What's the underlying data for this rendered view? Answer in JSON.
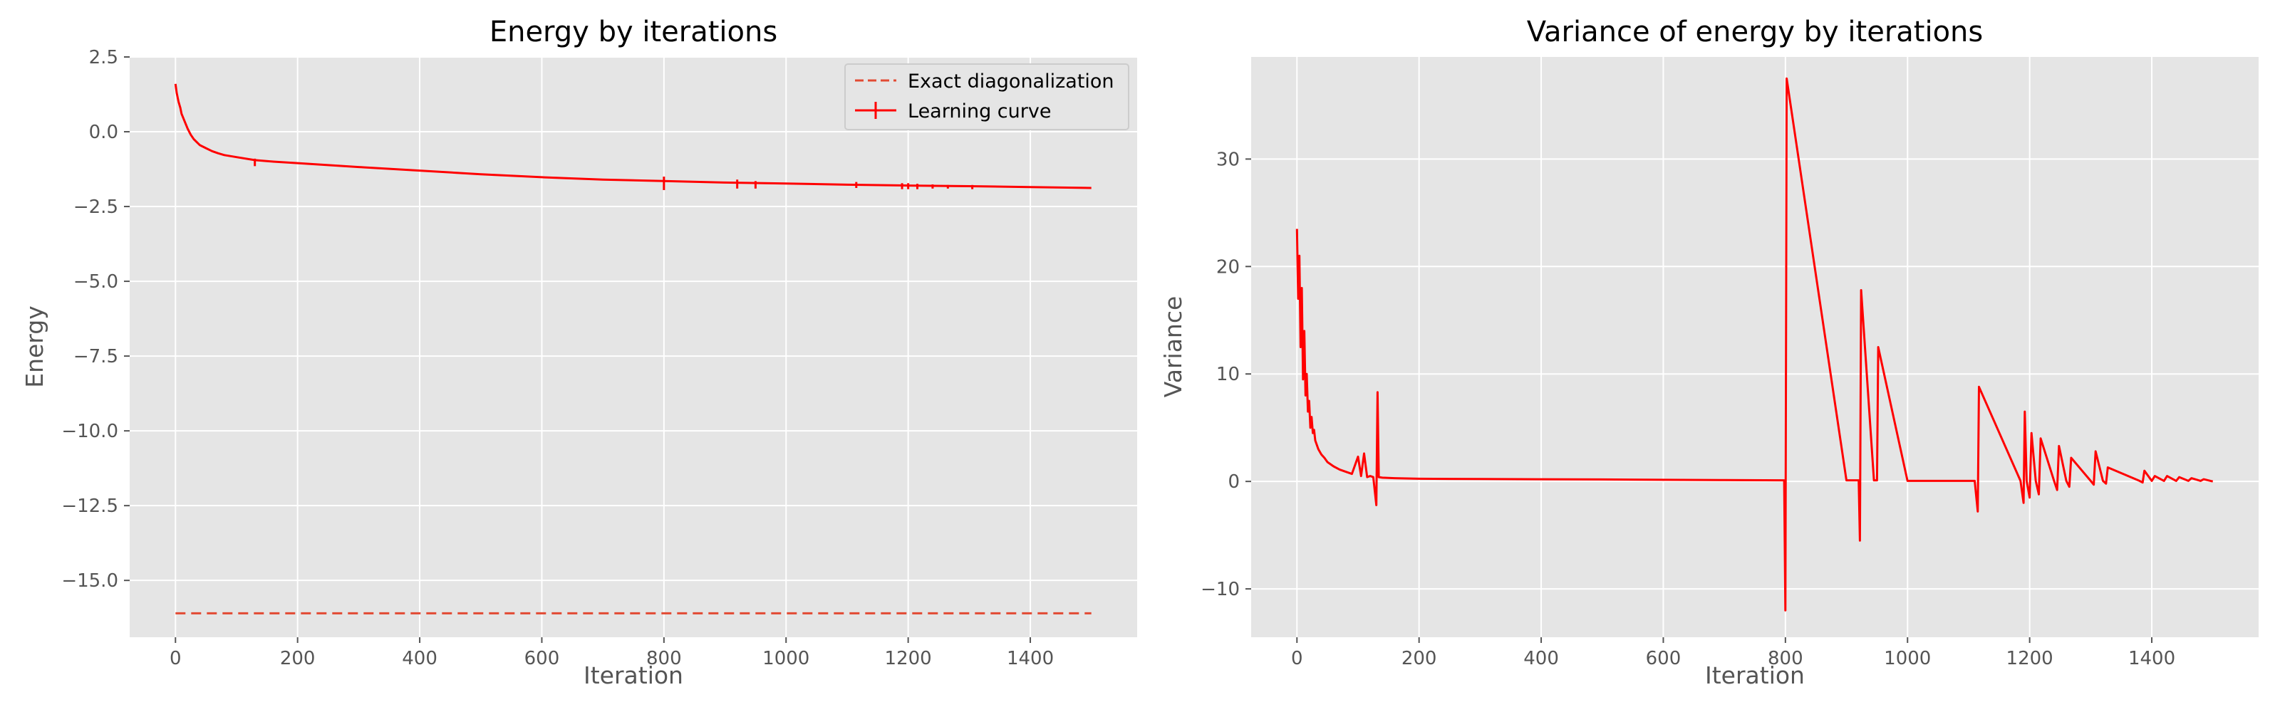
{
  "chart_data": [
    {
      "type": "line",
      "title": "Energy by iterations",
      "xlabel": "Iteration",
      "ylabel": "Energy",
      "xlim": [
        -75,
        1575
      ],
      "ylim": [
        -16.9,
        2.5
      ],
      "xticks": [
        0,
        200,
        400,
        600,
        800,
        1000,
        1200,
        1400
      ],
      "xtick_labels": [
        "0",
        "200",
        "400",
        "600",
        "800",
        "1000",
        "1200",
        "1400"
      ],
      "yticks": [
        2.5,
        0.0,
        -2.5,
        -5.0,
        -7.5,
        -10.0,
        -12.5,
        -15.0
      ],
      "ytick_labels": [
        "2.5",
        "0.0",
        "−2.5",
        "−5.0",
        "−7.5",
        "−10.0",
        "−12.5",
        "−15.0"
      ],
      "grid": true,
      "legend": "top-right",
      "colors": {
        "series": "#ff0000",
        "exact": "#e24a33"
      },
      "series": [
        {
          "name": "Exact diagonalization",
          "style": "dashed",
          "x": [
            0,
            1500
          ],
          "y": [
            -16.1,
            -16.1
          ]
        },
        {
          "name": "Learning curve",
          "style": "solid-errorbar",
          "x": [
            0,
            2,
            5,
            8,
            10,
            15,
            20,
            25,
            30,
            40,
            50,
            60,
            70,
            80,
            100,
            130,
            160,
            200,
            300,
            400,
            500,
            600,
            700,
            800,
            900,
            1000,
            1100,
            1200,
            1300,
            1400,
            1500
          ],
          "y": [
            1.6,
            1.3,
            1.0,
            0.8,
            0.6,
            0.35,
            0.1,
            -0.1,
            -0.25,
            -0.45,
            -0.55,
            -0.65,
            -0.72,
            -0.78,
            -0.85,
            -0.95,
            -1.0,
            -1.05,
            -1.18,
            -1.3,
            -1.42,
            -1.52,
            -1.6,
            -1.65,
            -1.7,
            -1.73,
            -1.77,
            -1.8,
            -1.82,
            -1.85,
            -1.88
          ]
        }
      ],
      "error_spikes": [
        {
          "x": 130,
          "lo": -1.15,
          "hi": -0.9
        },
        {
          "x": 800,
          "lo": -1.95,
          "hi": -1.5
        },
        {
          "x": 920,
          "lo": -1.9,
          "hi": -1.6
        },
        {
          "x": 950,
          "lo": -1.9,
          "hi": -1.65
        },
        {
          "x": 1115,
          "lo": -1.88,
          "hi": -1.68
        },
        {
          "x": 1190,
          "lo": -1.92,
          "hi": -1.72
        },
        {
          "x": 1200,
          "lo": -1.92,
          "hi": -1.72
        },
        {
          "x": 1215,
          "lo": -1.92,
          "hi": -1.74
        },
        {
          "x": 1240,
          "lo": -1.9,
          "hi": -1.76
        },
        {
          "x": 1265,
          "lo": -1.9,
          "hi": -1.78
        },
        {
          "x": 1305,
          "lo": -1.92,
          "hi": -1.78
        }
      ]
    },
    {
      "type": "line",
      "title": "Variance of energy by iterations",
      "xlabel": "Iteration",
      "ylabel": "Variance",
      "xlim": [
        -75,
        1575
      ],
      "ylim": [
        -14.5,
        39.5
      ],
      "xticks": [
        0,
        200,
        400,
        600,
        800,
        1000,
        1200,
        1400
      ],
      "xtick_labels": [
        "0",
        "200",
        "400",
        "600",
        "800",
        "1000",
        "1200",
        "1400"
      ],
      "yticks": [
        30,
        20,
        10,
        0,
        -10
      ],
      "ytick_labels": [
        "30",
        "20",
        "10",
        "0",
        "−10"
      ],
      "grid": true,
      "colors": {
        "series": "#ff0000"
      },
      "series": [
        {
          "style": "solid",
          "x": [
            0,
            2,
            4,
            6,
            8,
            10,
            12,
            14,
            16,
            18,
            20,
            22,
            24,
            26,
            28,
            30,
            35,
            40,
            45,
            50,
            60,
            70,
            80,
            90,
            100,
            105,
            110,
            115,
            120,
            125,
            130,
            132,
            134,
            140,
            160,
            200,
            300,
            400,
            500,
            600,
            700,
            798,
            800,
            802,
            900,
            920,
            922,
            924,
            945,
            950,
            952,
            1000,
            1110,
            1115,
            1117,
            1185,
            1190,
            1192,
            1195,
            1200,
            1203,
            1210,
            1215,
            1218,
            1240,
            1245,
            1248,
            1260,
            1265,
            1268,
            1300,
            1305,
            1308,
            1320,
            1325,
            1328,
            1380,
            1385,
            1388,
            1400,
            1405,
            1420,
            1425,
            1440,
            1445,
            1460,
            1465,
            1480,
            1485,
            1500
          ],
          "y": [
            23.5,
            17,
            21,
            12.5,
            18,
            9.5,
            14,
            8,
            10,
            6.5,
            7.5,
            5,
            6,
            4.5,
            4.8,
            3.8,
            3,
            2.5,
            2.2,
            1.8,
            1.4,
            1.1,
            0.9,
            0.7,
            2.3,
            0.5,
            2.6,
            0.4,
            0.5,
            0.4,
            -2.2,
            8.3,
            0.4,
            0.35,
            0.3,
            0.25,
            0.22,
            0.2,
            0.18,
            0.15,
            0.12,
            0.1,
            -12,
            37.5,
            0.1,
            0.1,
            -5.5,
            17.8,
            0.1,
            0.1,
            12.5,
            0.05,
            0.05,
            -2.8,
            8.8,
            0.05,
            -2,
            6.5,
            0.05,
            -1.5,
            4.5,
            0.05,
            -1.2,
            4,
            0.05,
            -0.8,
            3.3,
            0.05,
            -0.5,
            2.2,
            0.05,
            -0.3,
            2.8,
            0.05,
            -0.2,
            1.3,
            0.05,
            -0.1,
            1.0,
            0.05,
            0.5,
            0.05,
            0.5,
            0.05,
            0.4,
            0.05,
            0.3,
            0.05,
            0.2,
            0.0
          ]
        }
      ]
    }
  ]
}
